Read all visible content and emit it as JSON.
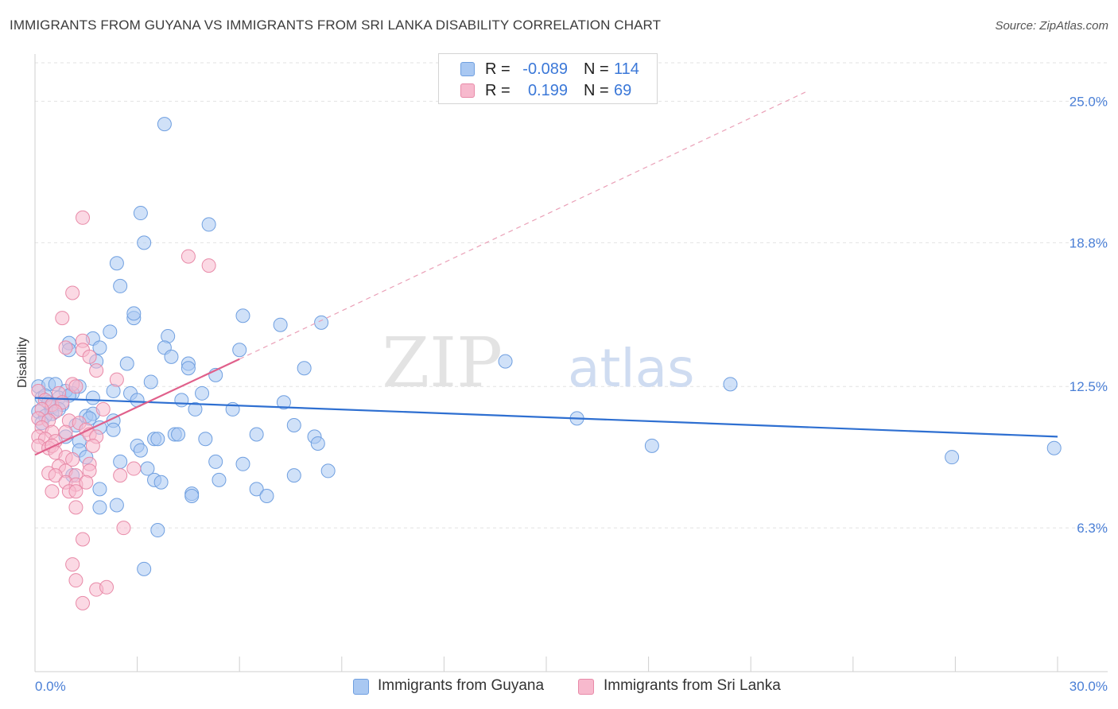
{
  "header": {
    "title": "IMMIGRANTS FROM GUYANA VS IMMIGRANTS FROM SRI LANKA DISABILITY CORRELATION CHART",
    "source": "Source: ZipAtlas.com"
  },
  "watermark": {
    "zip": "ZIP",
    "atlas": "atlas"
  },
  "legend": {
    "rows": [
      {
        "r_label": "R =",
        "r_value": "-0.089",
        "n_label": "N =",
        "n_value": "114",
        "color": "#a9c8f2",
        "border": "#6f9fe0"
      },
      {
        "r_label": "R =",
        "r_value": "0.199",
        "n_label": "N =",
        "n_value": "69",
        "color": "#f7b9cd",
        "border": "#e88aa8"
      }
    ]
  },
  "bottom_legend": {
    "items": [
      {
        "label": "Immigrants from Guyana",
        "color": "#a9c8f2",
        "border": "#6f9fe0"
      },
      {
        "label": "Immigrants from Sri Lanka",
        "color": "#f7b9cd",
        "border": "#e88aa8"
      }
    ]
  },
  "chart_data": {
    "type": "scatter",
    "title": "IMMIGRANTS FROM GUYANA VS IMMIGRANTS FROM SRI LANKA DISABILITY CORRELATION CHART",
    "xlabel": "",
    "ylabel": "Disability",
    "xlim": [
      0,
      30
    ],
    "ylim": [
      0,
      27
    ],
    "x_tick_labels": {
      "min": "0.0%",
      "max": "30.0%"
    },
    "y_ticks": [
      6.3,
      12.5,
      18.8,
      25.0
    ],
    "y_tick_labels": [
      "6.3%",
      "12.5%",
      "18.8%",
      "25.0%"
    ],
    "grid": true,
    "legend_position": "top-center",
    "series": [
      {
        "name": "Immigrants from Guyana",
        "color": "#6f9fe0",
        "fill": "#a9c8f2",
        "trend": {
          "x": [
            0,
            30
          ],
          "y": [
            12.0,
            10.3
          ]
        },
        "points": [
          [
            3.8,
            24.0
          ],
          [
            3.1,
            20.1
          ],
          [
            5.1,
            19.6
          ],
          [
            3.2,
            18.8
          ],
          [
            2.4,
            17.9
          ],
          [
            2.5,
            16.9
          ],
          [
            2.9,
            15.5
          ],
          [
            2.9,
            15.7
          ],
          [
            6.1,
            15.6
          ],
          [
            7.2,
            15.2
          ],
          [
            8.4,
            15.3
          ],
          [
            2.2,
            14.9
          ],
          [
            1.7,
            14.6
          ],
          [
            1.0,
            14.4
          ],
          [
            3.9,
            14.7
          ],
          [
            1.9,
            14.2
          ],
          [
            3.8,
            14.2
          ],
          [
            6.0,
            14.1
          ],
          [
            1.0,
            14.1
          ],
          [
            4.0,
            13.8
          ],
          [
            1.8,
            13.6
          ],
          [
            2.7,
            13.5
          ],
          [
            4.5,
            13.5
          ],
          [
            4.5,
            13.3
          ],
          [
            7.9,
            13.3
          ],
          [
            13.8,
            13.6
          ],
          [
            5.3,
            13.0
          ],
          [
            20.4,
            12.6
          ],
          [
            0.1,
            12.5
          ],
          [
            0.4,
            12.6
          ],
          [
            0.6,
            12.6
          ],
          [
            1.3,
            12.5
          ],
          [
            3.4,
            12.7
          ],
          [
            1.1,
            12.2
          ],
          [
            0.9,
            12.3
          ],
          [
            2.3,
            12.3
          ],
          [
            2.8,
            12.2
          ],
          [
            4.9,
            12.2
          ],
          [
            0.2,
            12.0
          ],
          [
            0.3,
            12.1
          ],
          [
            0.7,
            12.0
          ],
          [
            1.0,
            12.1
          ],
          [
            1.7,
            12.0
          ],
          [
            4.3,
            11.9
          ],
          [
            0.4,
            11.8
          ],
          [
            0.5,
            11.6
          ],
          [
            0.8,
            11.7
          ],
          [
            3.0,
            11.9
          ],
          [
            7.3,
            11.8
          ],
          [
            0.1,
            11.4
          ],
          [
            0.5,
            11.3
          ],
          [
            0.7,
            11.5
          ],
          [
            1.5,
            11.2
          ],
          [
            1.7,
            11.3
          ],
          [
            4.7,
            11.5
          ],
          [
            5.8,
            11.5
          ],
          [
            0.3,
            11.2
          ],
          [
            1.6,
            11.1
          ],
          [
            2.3,
            11.0
          ],
          [
            15.9,
            11.1
          ],
          [
            1.2,
            10.8
          ],
          [
            1.9,
            10.7
          ],
          [
            0.2,
            10.9
          ],
          [
            2.3,
            10.6
          ],
          [
            6.5,
            10.4
          ],
          [
            7.6,
            10.8
          ],
          [
            0.9,
            10.3
          ],
          [
            1.3,
            10.1
          ],
          [
            4.1,
            10.4
          ],
          [
            4.2,
            10.4
          ],
          [
            3.5,
            10.2
          ],
          [
            3.6,
            10.2
          ],
          [
            5.0,
            10.2
          ],
          [
            8.2,
            10.3
          ],
          [
            8.3,
            10.0
          ],
          [
            3.0,
            9.9
          ],
          [
            3.1,
            9.7
          ],
          [
            1.3,
            9.7
          ],
          [
            1.5,
            9.4
          ],
          [
            18.1,
            9.9
          ],
          [
            26.9,
            9.4
          ],
          [
            29.9,
            9.8
          ],
          [
            2.5,
            9.2
          ],
          [
            3.3,
            8.9
          ],
          [
            5.3,
            9.2
          ],
          [
            6.1,
            9.1
          ],
          [
            7.6,
            8.6
          ],
          [
            8.6,
            8.8
          ],
          [
            1.1,
            8.6
          ],
          [
            3.5,
            8.4
          ],
          [
            3.7,
            8.3
          ],
          [
            5.4,
            8.4
          ],
          [
            1.9,
            8.0
          ],
          [
            6.5,
            8.0
          ],
          [
            4.6,
            7.8
          ],
          [
            4.6,
            7.7
          ],
          [
            6.8,
            7.7
          ],
          [
            1.9,
            7.2
          ],
          [
            2.4,
            7.3
          ],
          [
            3.6,
            6.2
          ],
          [
            3.2,
            4.5
          ]
        ]
      },
      {
        "name": "Immigrants from Sri Lanka",
        "color": "#e88aa8",
        "fill": "#f7b9cd",
        "trend": {
          "x": [
            0,
            6.0
          ],
          "y": [
            9.5,
            13.7
          ],
          "extended": {
            "x": [
              6.0,
              22.6
            ],
            "y": [
              13.7,
              25.4
            ]
          }
        },
        "points": [
          [
            1.4,
            19.9
          ],
          [
            4.5,
            18.2
          ],
          [
            5.1,
            17.8
          ],
          [
            1.1,
            16.6
          ],
          [
            0.8,
            15.5
          ],
          [
            1.4,
            14.5
          ],
          [
            0.9,
            14.2
          ],
          [
            1.4,
            14.1
          ],
          [
            1.6,
            13.8
          ],
          [
            1.8,
            13.2
          ],
          [
            2.4,
            12.8
          ],
          [
            1.1,
            12.6
          ],
          [
            1.2,
            12.5
          ],
          [
            0.1,
            12.3
          ],
          [
            0.7,
            12.2
          ],
          [
            0.3,
            11.9
          ],
          [
            0.5,
            11.7
          ],
          [
            0.8,
            11.8
          ],
          [
            0.2,
            11.5
          ],
          [
            0.6,
            11.4
          ],
          [
            2.0,
            11.5
          ],
          [
            0.1,
            11.1
          ],
          [
            0.4,
            11.0
          ],
          [
            1.0,
            11.0
          ],
          [
            1.3,
            10.9
          ],
          [
            1.5,
            10.6
          ],
          [
            0.2,
            10.7
          ],
          [
            0.5,
            10.5
          ],
          [
            0.9,
            10.5
          ],
          [
            1.6,
            10.4
          ],
          [
            1.8,
            10.3
          ],
          [
            0.1,
            10.3
          ],
          [
            0.3,
            10.2
          ],
          [
            0.6,
            10.1
          ],
          [
            0.1,
            9.9
          ],
          [
            0.4,
            9.8
          ],
          [
            0.5,
            9.9
          ],
          [
            0.6,
            9.6
          ],
          [
            1.7,
            9.9
          ],
          [
            0.9,
            9.4
          ],
          [
            1.1,
            9.3
          ],
          [
            1.6,
            9.1
          ],
          [
            0.7,
            9.0
          ],
          [
            0.9,
            8.8
          ],
          [
            1.2,
            8.6
          ],
          [
            1.6,
            8.8
          ],
          [
            2.5,
            8.6
          ],
          [
            2.9,
            8.9
          ],
          [
            0.4,
            8.7
          ],
          [
            0.6,
            8.6
          ],
          [
            0.9,
            8.3
          ],
          [
            1.2,
            8.2
          ],
          [
            1.5,
            8.3
          ],
          [
            0.5,
            7.9
          ],
          [
            1.0,
            7.9
          ],
          [
            1.2,
            7.9
          ],
          [
            1.2,
            7.2
          ],
          [
            2.6,
            6.3
          ],
          [
            1.4,
            5.8
          ],
          [
            1.1,
            4.7
          ],
          [
            1.2,
            4.0
          ],
          [
            1.8,
            3.6
          ],
          [
            2.1,
            3.7
          ],
          [
            1.4,
            3.0
          ]
        ]
      }
    ]
  }
}
